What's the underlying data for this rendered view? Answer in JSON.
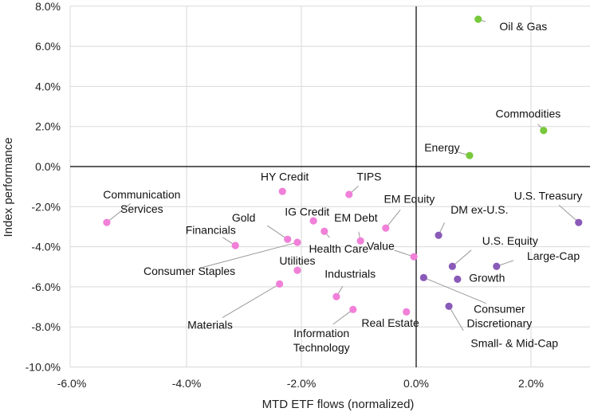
{
  "chart_data": {
    "type": "scatter",
    "title": "",
    "xlabel": "MTD ETF flows (normalized)",
    "ylabel": "Index performance",
    "xlim": [
      -6.0,
      2.9
    ],
    "ylim": [
      -10.0,
      8.0
    ],
    "x_ticks": [
      "-6.0%",
      "-4.0%",
      "-2.0%",
      "0.0%",
      "2.0%"
    ],
    "x_tick_values": [
      -6,
      -4,
      -2,
      0,
      2
    ],
    "y_ticks": [
      "8.0%",
      "6.0%",
      "4.0%",
      "2.0%",
      "0.0%",
      "-2.0%",
      "-4.0%",
      "-6.0%",
      "-8.0%",
      "-10.0%"
    ],
    "y_tick_values": [
      8,
      6,
      4,
      2,
      0,
      -2,
      -4,
      -6,
      -8,
      -10
    ],
    "grid": true,
    "colors": {
      "commodities": "#78c83c",
      "equity_sectors_credit": "#f080d8",
      "us_styles": "#8a5ab8"
    },
    "points": [
      {
        "label": "Oil & Gas",
        "x": 1.08,
        "y": 7.35,
        "group": "commodities",
        "lx": 1.45,
        "ly": 6.8,
        "anchor": "start"
      },
      {
        "label": "Commodities",
        "x": 2.22,
        "y": 1.8,
        "group": "commodities",
        "lx": 1.95,
        "ly": 2.45,
        "anchor": "middle"
      },
      {
        "label": "Energy",
        "x": 0.93,
        "y": 0.55,
        "group": "commodities",
        "lx": 0.45,
        "ly": 0.75,
        "anchor": "middle"
      },
      {
        "label": "U.S. Treasury",
        "x": 2.83,
        "y": -2.79,
        "group": "us_styles",
        "lx": 2.3,
        "ly": -1.65,
        "anchor": "middle"
      },
      {
        "label": "DM ex-U.S.",
        "x": 0.39,
        "y": -3.43,
        "group": "us_styles",
        "lx": 0.6,
        "ly": -2.35,
        "anchor": "start"
      },
      {
        "label": "U.S. Equity",
        "x": 0.63,
        "y": -4.98,
        "group": "us_styles",
        "lx": 1.15,
        "ly": -3.9,
        "anchor": "start"
      },
      {
        "label": "Large-Cap",
        "x": 1.4,
        "y": -4.98,
        "group": "us_styles",
        "lx": 1.93,
        "ly": -4.65,
        "anchor": "start"
      },
      {
        "label": "Growth",
        "x": 0.72,
        "y": -5.62,
        "group": "us_styles",
        "lx": 0.92,
        "ly": -5.75,
        "anchor": "start"
      },
      {
        "label": "Consumer Discretionary",
        "x": 0.13,
        "y": -5.54,
        "group": "us_styles",
        "lx": 1.45,
        "ly": -7.3,
        "anchor": "middle",
        "multiline": [
          "Consumer",
          "Discretionary"
        ]
      },
      {
        "label": "Small- & Mid-Cap",
        "x": 0.57,
        "y": -6.97,
        "group": "us_styles",
        "lx": 0.95,
        "ly": -9.0,
        "anchor": "start"
      },
      {
        "label": "Communication Services",
        "x": -5.39,
        "y": -2.79,
        "group": "equity_sectors_credit",
        "lx": -4.78,
        "ly": -1.6,
        "anchor": "middle",
        "multiline": [
          "Communication",
          "Services"
        ]
      },
      {
        "label": "HY Credit",
        "x": -2.33,
        "y": -1.24,
        "group": "equity_sectors_credit",
        "lx": -2.29,
        "ly": -0.7,
        "anchor": "middle"
      },
      {
        "label": "TIPS",
        "x": -1.17,
        "y": -1.39,
        "group": "equity_sectors_credit",
        "lx": -0.82,
        "ly": -0.7,
        "anchor": "middle"
      },
      {
        "label": "EM Equity",
        "x": -0.53,
        "y": -3.07,
        "group": "equity_sectors_credit",
        "lx": -0.12,
        "ly": -1.8,
        "anchor": "middle"
      },
      {
        "label": "Gold",
        "x": -2.24,
        "y": -3.63,
        "group": "equity_sectors_credit",
        "lx": -2.8,
        "ly": -2.75,
        "anchor": "end"
      },
      {
        "label": "IG Credit",
        "x": -1.79,
        "y": -2.71,
        "group": "equity_sectors_credit",
        "lx": -1.9,
        "ly": -2.45,
        "anchor": "middle"
      },
      {
        "label": "EM Debt",
        "x": -0.97,
        "y": -3.71,
        "group": "equity_sectors_credit",
        "lx": -1.05,
        "ly": -2.75,
        "anchor": "middle"
      },
      {
        "label": "Health Care",
        "x": -1.6,
        "y": -3.23,
        "group": "equity_sectors_credit",
        "lx": -1.35,
        "ly": -4.3,
        "anchor": "middle"
      },
      {
        "label": "Value",
        "x": -0.04,
        "y": -4.5,
        "group": "equity_sectors_credit",
        "lx": -0.62,
        "ly": -4.15,
        "anchor": "middle"
      },
      {
        "label": "Financials",
        "x": -3.15,
        "y": -3.94,
        "group": "equity_sectors_credit",
        "lx": -3.58,
        "ly": -3.35,
        "anchor": "middle"
      },
      {
        "label": "Consumer Staples",
        "x": -2.07,
        "y": -3.78,
        "group": "equity_sectors_credit",
        "lx": -3.95,
        "ly": -5.4,
        "anchor": "middle"
      },
      {
        "label": "Utilities",
        "x": -2.07,
        "y": -5.18,
        "group": "equity_sectors_credit",
        "lx": -2.07,
        "ly": -4.9,
        "anchor": "middle"
      },
      {
        "label": "Materials",
        "x": -2.38,
        "y": -5.86,
        "group": "equity_sectors_credit",
        "lx": -3.59,
        "ly": -8.1,
        "anchor": "middle"
      },
      {
        "label": "Industrials",
        "x": -1.39,
        "y": -6.49,
        "group": "equity_sectors_credit",
        "lx": -1.15,
        "ly": -5.55,
        "anchor": "middle"
      },
      {
        "label": "Information Technology",
        "x": -1.1,
        "y": -7.13,
        "group": "equity_sectors_credit",
        "lx": -1.65,
        "ly": -8.5,
        "anchor": "middle",
        "multiline": [
          "Information",
          "Technology"
        ]
      },
      {
        "label": "Real Estate",
        "x": -0.17,
        "y": -7.25,
        "group": "equity_sectors_credit",
        "lx": -0.45,
        "ly": -8.0,
        "anchor": "middle"
      }
    ]
  }
}
